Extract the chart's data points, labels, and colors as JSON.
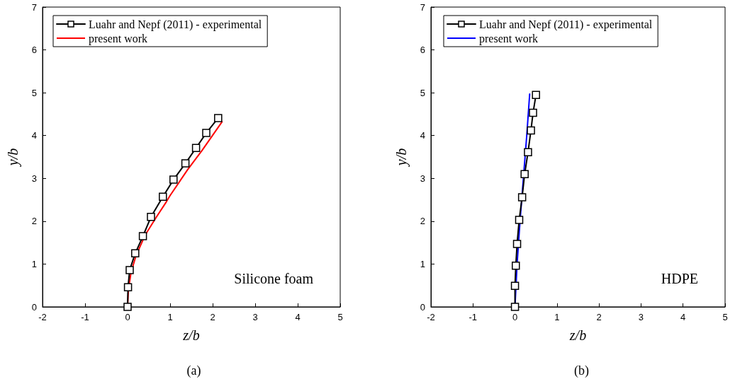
{
  "chart_data": [
    {
      "type": "line",
      "title": "(a)",
      "xlabel": "z/b",
      "ylabel": "y/b",
      "annotations": [
        "Silicone foam"
      ],
      "xlim": [
        -2,
        5
      ],
      "xticks": [
        -2,
        -1,
        0,
        1,
        2,
        3,
        4,
        5
      ],
      "ylim": [
        0,
        7
      ],
      "yticks": [
        0,
        1,
        2,
        3,
        4,
        5,
        6,
        7
      ],
      "grid": false,
      "legend": "top",
      "series": [
        {
          "name": "Luahr and Nepf (2011) - experimental",
          "color": "#000000",
          "marker": "square",
          "x": [
            0,
            0.01,
            0.05,
            0.18,
            0.36,
            0.55,
            0.83,
            1.08,
            1.36,
            1.61,
            1.85,
            2.13
          ],
          "values": [
            0,
            0.46,
            0.86,
            1.25,
            1.65,
            2.1,
            2.57,
            2.97,
            3.35,
            3.71,
            4.06,
            4.41
          ]
        },
        {
          "name": "present work",
          "color": "#ff0000",
          "marker": "none",
          "x": [
            0,
            0.02,
            0.08,
            0.2,
            0.41,
            0.68,
            0.91,
            1.0,
            1.41,
            1.75,
            2.22
          ],
          "values": [
            0,
            0.4,
            0.8,
            1.2,
            1.67,
            2.1,
            2.45,
            2.6,
            3.2,
            3.65,
            4.32
          ]
        }
      ]
    },
    {
      "type": "line",
      "title": "(b)",
      "xlabel": "z/b",
      "ylabel": "y/b",
      "annotations": [
        "HDPE"
      ],
      "xlim": [
        -2,
        5
      ],
      "xticks": [
        -2,
        -1,
        0,
        1,
        2,
        3,
        4,
        5
      ],
      "ylim": [
        0,
        7
      ],
      "yticks": [
        0,
        1,
        2,
        3,
        4,
        5,
        6,
        7
      ],
      "grid": false,
      "legend": "top",
      "series": [
        {
          "name": "Luahr and Nepf (2011) - experimental",
          "color": "#000000",
          "marker": "square",
          "x": [
            0,
            0,
            0.02,
            0.05,
            0.1,
            0.17,
            0.23,
            0.31,
            0.38,
            0.43,
            0.5
          ],
          "values": [
            0,
            0.49,
            0.96,
            1.47,
            2.03,
            2.56,
            3.1,
            3.61,
            4.12,
            4.53,
            4.95
          ]
        },
        {
          "name": "present work",
          "color": "#0000ff",
          "marker": "none",
          "x": [
            0,
            0.05,
            0.12,
            0.2,
            0.28,
            0.35
          ],
          "values": [
            0,
            1,
            2,
            3,
            4,
            4.97
          ]
        }
      ]
    }
  ]
}
